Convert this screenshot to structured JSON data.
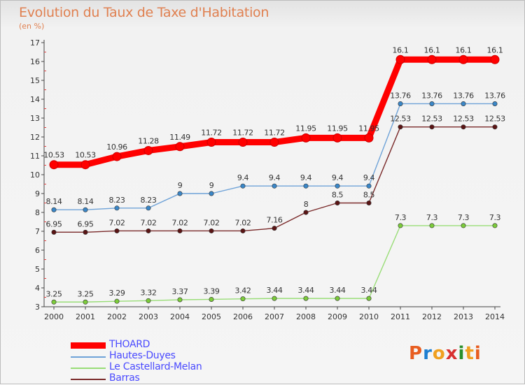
{
  "title": "Evolution du Taux de Taxe d'Habitation",
  "subtitle": "(en %)",
  "logo": {
    "text": "Proxiti",
    "colors": [
      "#e85d20",
      "#1e7fd1",
      "#f0a020",
      "#d83030",
      "#2a8f2a",
      "#f0a020",
      "#e85d20"
    ]
  },
  "chart_data": {
    "type": "line",
    "x": [
      "2000",
      "2001",
      "2002",
      "2003",
      "2004",
      "2005",
      "2006",
      "2007",
      "2008",
      "2009",
      "2010",
      "2011",
      "2012",
      "2013",
      "2014"
    ],
    "ylim": [
      3,
      17
    ],
    "yticks": [
      "3",
      "4",
      "5",
      "6",
      "7",
      "8",
      "9",
      "10",
      "11",
      "12",
      "13",
      "14",
      "15",
      "16",
      "17"
    ],
    "grid": false,
    "legend_position": "bottom-left",
    "series": [
      {
        "name": "THOARD",
        "color": "#ff0000",
        "style": "thick",
        "values": [
          10.53,
          10.53,
          10.96,
          11.28,
          11.49,
          11.72,
          11.72,
          11.72,
          11.95,
          11.95,
          11.95,
          16.1,
          16.1,
          16.1,
          16.1
        ],
        "labels": [
          "10.53",
          "10.53",
          "10.96",
          "11.28",
          "11.49",
          "11.72",
          "11.72",
          "11.72",
          "11.95",
          "11.95",
          "11.95",
          "16.1",
          "16.1",
          "16.1",
          "16.1"
        ]
      },
      {
        "name": "Hautes-Duyes",
        "color": "#6fa3d8",
        "marker": "#3a87c8",
        "style": "thin",
        "values": [
          8.14,
          8.14,
          8.23,
          8.23,
          9,
          9,
          9.4,
          9.4,
          9.4,
          9.4,
          9.4,
          13.76,
          13.76,
          13.76,
          13.76
        ],
        "labels": [
          "8.14",
          "8.14",
          "8.23",
          "8.23",
          "9",
          "9",
          "9.4",
          "9.4",
          "9.4",
          "9.4",
          "9.4",
          "13.76",
          "13.76",
          "13.76",
          "13.76"
        ]
      },
      {
        "name": "Le Castellard-Melan",
        "color": "#99dd77",
        "marker": "#7ccc3a",
        "style": "thin",
        "values": [
          3.25,
          3.25,
          3.29,
          3.32,
          3.37,
          3.39,
          3.42,
          3.44,
          3.44,
          3.44,
          3.44,
          7.3,
          7.3,
          7.3,
          7.3
        ],
        "labels": [
          "3.25",
          "3.25",
          "3.29",
          "3.32",
          "3.37",
          "3.39",
          "3.42",
          "3.44",
          "3.44",
          "3.44",
          "3.44",
          "7.3",
          "7.3",
          "7.3",
          "7.3"
        ]
      },
      {
        "name": "Barras",
        "color": "#7a2a2a",
        "marker": "#5a1414",
        "style": "thin",
        "values": [
          6.95,
          6.95,
          7.02,
          7.02,
          7.02,
          7.02,
          7.02,
          7.16,
          8,
          8.5,
          8.5,
          12.53,
          12.53,
          12.53,
          12.53
        ],
        "labels": [
          "6.95",
          "6.95",
          "7.02",
          "7.02",
          "7.02",
          "7.02",
          "7.02",
          "7.16",
          "8",
          "8.5",
          "8.5",
          "12.53",
          "12.53",
          "12.53",
          "12.53"
        ]
      }
    ]
  }
}
